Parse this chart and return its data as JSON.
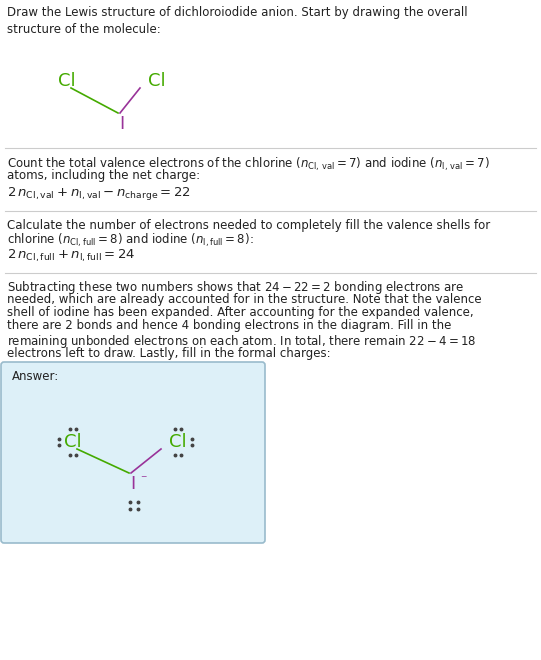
{
  "bg_color": "#ffffff",
  "answer_bg": "#ddf0f8",
  "answer_border": "#99bbcc",
  "cl_color": "#44aa00",
  "i_color": "#993399",
  "text_color": "#222222",
  "dot_color": "#444444",
  "sep_color": "#cccccc",
  "title": "Draw the Lewis structure of dichloroiodide anion. Start by drawing the overall\nstructure of the molecule:",
  "s1_line1": "Count the total valence electrons of the chlorine ($n_{\\mathrm{Cl,\\,val}} = 7$) and iodine ($n_{\\mathrm{I,\\,val}} = 7$)",
  "s1_line2": "atoms, including the net charge:",
  "s1_eq": "$2\\,n_{\\mathrm{Cl,val}} + n_{\\mathrm{I,val}} - n_{\\mathrm{charge}} = 22$",
  "s2_line1": "Calculate the number of electrons needed to completely fill the valence shells for",
  "s2_line2": "chlorine ($n_{\\mathrm{Cl,full}} = 8$) and iodine ($n_{\\mathrm{I,full}} = 8$):",
  "s2_eq": "$2\\,n_{\\mathrm{Cl,full}} + n_{\\mathrm{I,full}} = 24$",
  "s3_lines": [
    "Subtracting these two numbers shows that $24 - 22 = 2$ bonding electrons are",
    "needed, which are already accounted for in the structure. Note that the valence",
    "shell of iodine has been expanded. After accounting for the expanded valence,",
    "there are 2 bonds and hence 4 bonding electrons in the diagram. Fill in the",
    "remaining unbonded electrons on each atom. In total, there remain $22 - 4 = 18$",
    "electrons left to draw. Lastly, fill in the formal charges:"
  ],
  "answer_label": "Answer:"
}
